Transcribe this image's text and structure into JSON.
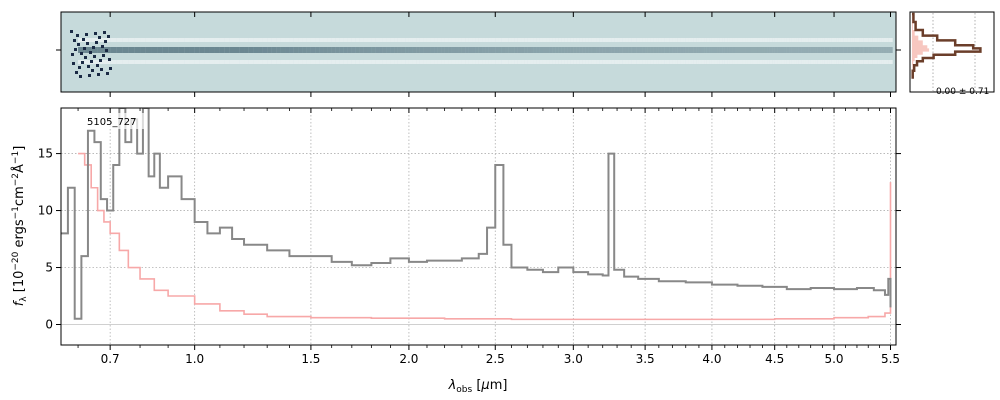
{
  "chart_data": [
    {
      "panel": "2d-spectrum",
      "type": "heatmap",
      "xlim": [
        0.55,
        5.55
      ],
      "color": "#c6dadb",
      "trace_color": "#3a5a6a",
      "bright_color": "#1a2a44"
    },
    {
      "panel": "profile",
      "type": "line",
      "annotation": "-0.00 ± 0.71",
      "series": [
        {
          "name": "",
          "color": "#6b3e2a",
          "x": [
            0.0,
            0.02,
            0.05,
            0.15,
            0.35,
            0.6,
            0.85,
            0.95,
            0.6,
            0.3,
            0.15,
            0.07,
            0.03,
            0.01
          ],
          "y": [
            -4.5,
            -3.5,
            -2.5,
            -1.8,
            -1.2,
            -0.6,
            -0.2,
            0.2,
            0.6,
            1.0,
            1.4,
            1.9,
            2.6,
            3.6
          ]
        }
      ],
      "fill_color": "#f7c7c0"
    },
    {
      "panel": "1d-spectrum",
      "type": "line",
      "xlabel": "λobs [μm]",
      "ylabel": "fλ [10−20 ergs−1cm−2Å−1]",
      "label": "5105_727",
      "xscale": "sqrt",
      "xlim": [
        0.55,
        5.55
      ],
      "ylim": [
        -1.8,
        19
      ],
      "grid": true,
      "x_ticks": [
        0.7,
        1.0,
        1.5,
        2.0,
        2.5,
        3.0,
        3.5,
        4.0,
        4.5,
        5.0,
        5.5
      ],
      "x_tick_labels": [
        "0.7",
        "1.0",
        "1.5",
        "2.0",
        "2.5",
        "3.0",
        "3.5",
        "4.0",
        "4.5",
        "5.0",
        "5.5"
      ],
      "y_ticks": [
        0,
        5,
        10,
        15
      ],
      "y_tick_labels": [
        "0",
        "5",
        "10",
        "15"
      ],
      "series": [
        {
          "name": "",
          "color": "#888888",
          "x": [
            0.55,
            0.57,
            0.59,
            0.61,
            0.63,
            0.65,
            0.67,
            0.69,
            0.71,
            0.73,
            0.75,
            0.77,
            0.79,
            0.81,
            0.83,
            0.85,
            0.87,
            0.9,
            0.95,
            1.0,
            1.05,
            1.1,
            1.15,
            1.2,
            1.3,
            1.4,
            1.5,
            1.6,
            1.7,
            1.8,
            1.9,
            2.0,
            2.1,
            2.2,
            2.3,
            2.4,
            2.45,
            2.5,
            2.55,
            2.6,
            2.7,
            2.8,
            2.9,
            3.0,
            3.1,
            3.2,
            3.24,
            3.28,
            3.35,
            3.45,
            3.6,
            3.8,
            4.0,
            4.2,
            4.4,
            4.6,
            4.8,
            5.0,
            5.2,
            5.35,
            5.45,
            5.48,
            5.5
          ],
          "y": [
            8,
            12,
            0.5,
            6,
            17,
            16,
            11,
            10,
            14,
            19,
            16,
            18,
            15,
            19,
            13,
            15,
            12,
            13,
            11,
            9,
            8,
            8.5,
            7.5,
            7,
            6.5,
            6,
            6,
            5.5,
            5.2,
            5.4,
            5.8,
            5.5,
            5.6,
            5.6,
            5.8,
            6.2,
            8.5,
            14,
            7,
            5,
            4.8,
            4.6,
            5,
            4.6,
            4.4,
            4.3,
            15,
            4.8,
            4.2,
            4,
            3.8,
            3.7,
            3.5,
            3.4,
            3.3,
            3.1,
            3.2,
            3.1,
            3.2,
            3,
            2.6,
            4,
            1.5
          ]
        },
        {
          "name": "",
          "color": "#f7a8a8",
          "x": [
            0.6,
            0.62,
            0.64,
            0.66,
            0.68,
            0.7,
            0.73,
            0.76,
            0.8,
            0.85,
            0.9,
            1.0,
            1.1,
            1.2,
            1.3,
            1.5,
            1.8,
            2.2,
            2.6,
            3.0,
            3.5,
            4.0,
            4.5,
            5.0,
            5.3,
            5.45,
            5.5
          ],
          "y": [
            15,
            14,
            12,
            10,
            9,
            8,
            6.5,
            5,
            4,
            3,
            2.5,
            1.8,
            1.2,
            0.9,
            0.7,
            0.6,
            0.55,
            0.5,
            0.45,
            0.45,
            0.45,
            0.45,
            0.5,
            0.6,
            0.7,
            1,
            12.5
          ]
        }
      ]
    }
  ]
}
